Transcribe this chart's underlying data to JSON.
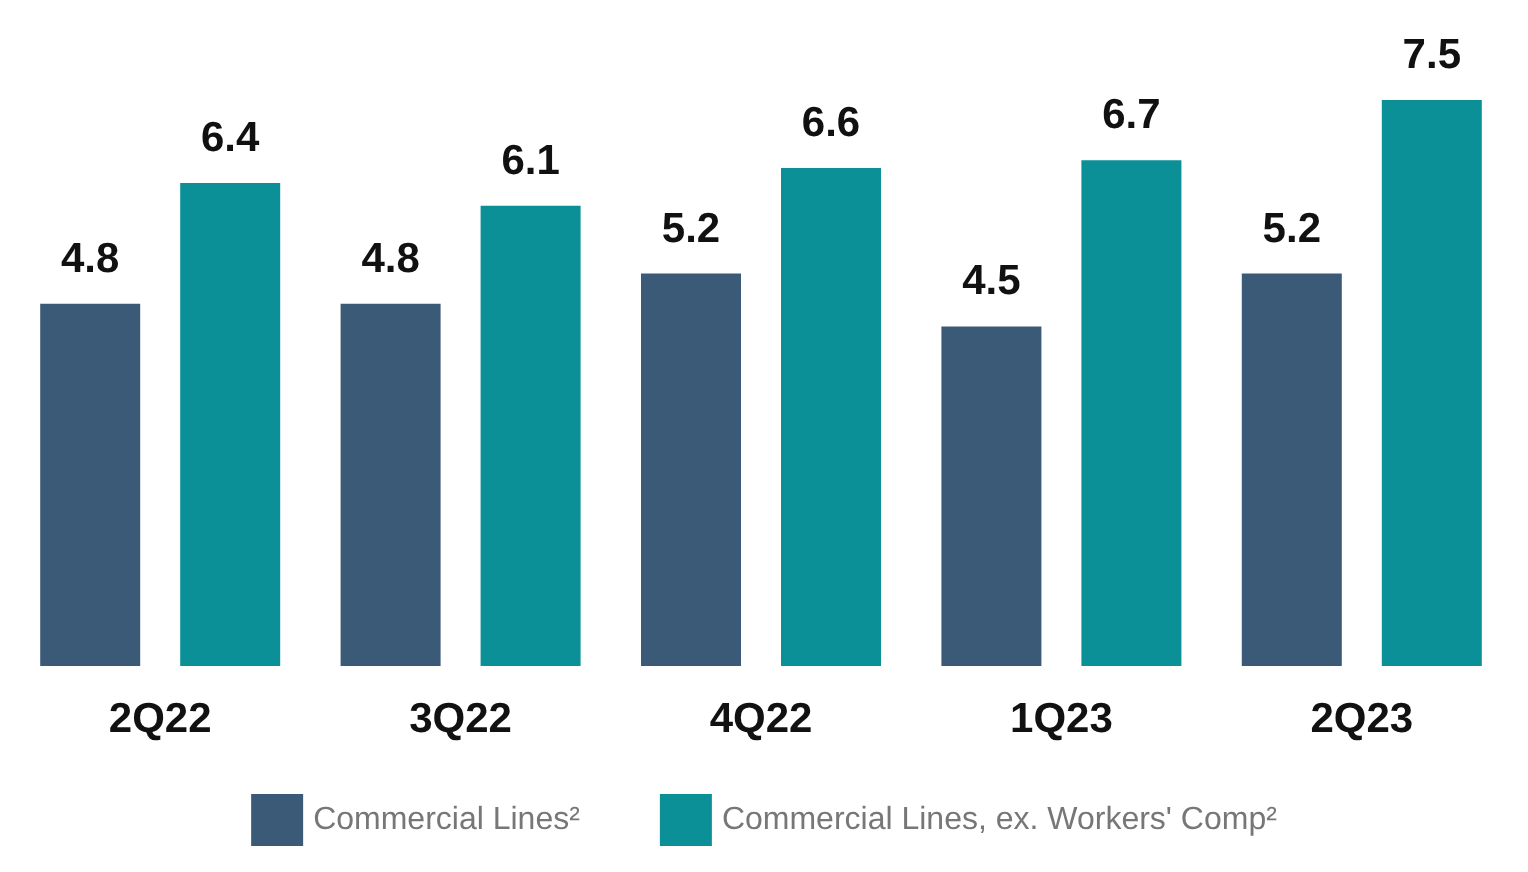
{
  "chart_data": {
    "type": "bar",
    "categories": [
      "2Q22",
      "3Q22",
      "4Q22",
      "1Q23",
      "2Q23"
    ],
    "series": [
      {
        "name": "Commercial Lines²",
        "color": "#3b5a78",
        "values": [
          4.8,
          4.8,
          5.2,
          4.5,
          5.2
        ]
      },
      {
        "name": "Commercial Lines, ex. Workers' Comp²",
        "color": "#0a9096",
        "values": [
          6.4,
          6.1,
          6.6,
          6.7,
          7.5
        ]
      }
    ],
    "data_labels": true,
    "legend": "bottom"
  }
}
